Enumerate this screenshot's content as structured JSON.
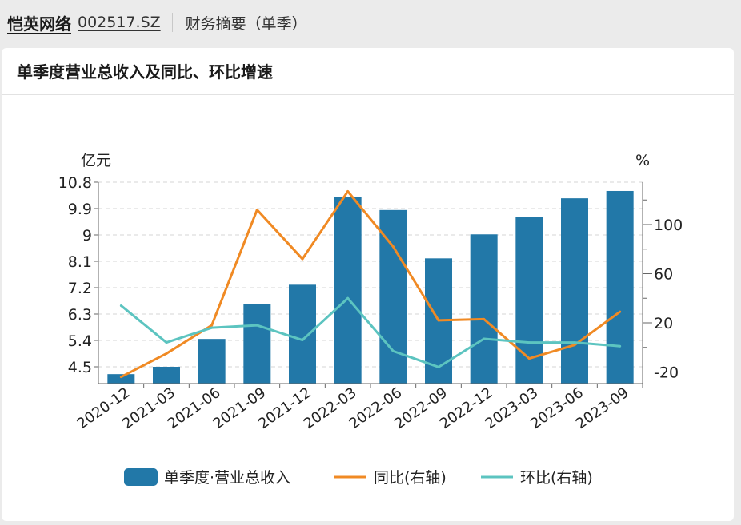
{
  "header": {
    "company": "恺英网络",
    "code": "002517.SZ",
    "section": "财务摘要（单季）"
  },
  "card": {
    "title": "单季度营业总收入及同比、环比增速"
  },
  "colors": {
    "bar": "#2278a8",
    "yoy": "#f08a24",
    "qoq": "#5cc4c0"
  },
  "chart_data": {
    "type": "bar+line",
    "categories": [
      "2020-12",
      "2021-03",
      "2021-06",
      "2021-09",
      "2021-12",
      "2022-03",
      "2022-06",
      "2022-09",
      "2022-12",
      "2023-03",
      "2023-06",
      "2023-09"
    ],
    "series": [
      {
        "name": "单季度·营业总收入",
        "type": "bar",
        "axis": "left",
        "values": [
          4.25,
          4.5,
          5.45,
          6.63,
          7.3,
          10.3,
          9.85,
          8.2,
          9.02,
          9.6,
          10.25,
          10.5
        ]
      },
      {
        "name": "同比(右轴)",
        "type": "line",
        "axis": "right",
        "values": [
          -24,
          -5,
          18,
          112,
          72,
          127,
          82,
          22,
          23,
          -9,
          2,
          29
        ]
      },
      {
        "name": "环比(右轴)",
        "type": "line",
        "axis": "right",
        "values": [
          34,
          4,
          16,
          18,
          6,
          40,
          -3,
          -16,
          7,
          4,
          4,
          1
        ]
      }
    ],
    "left_axis": {
      "unit": "亿元",
      "ticks": [
        "4.5",
        "5.4",
        "6.3",
        "7.2",
        "8.1",
        "9",
        "9.9",
        "10.8"
      ],
      "ylim": [
        4.0,
        10.8
      ]
    },
    "right_axis": {
      "unit": "%",
      "ticks": [
        "-20",
        "20",
        "60",
        "100"
      ],
      "ylim": [
        -29,
        140
      ]
    },
    "legend": [
      {
        "label": "单季度·营业总收入",
        "kind": "bar"
      },
      {
        "label": "同比(右轴)",
        "kind": "line",
        "color": "#f08a24"
      },
      {
        "label": "环比(右轴)",
        "kind": "line",
        "color": "#5cc4c0"
      }
    ]
  }
}
